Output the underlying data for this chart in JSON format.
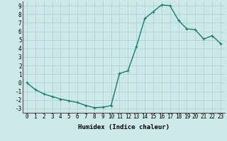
{
  "x": [
    0,
    1,
    2,
    3,
    4,
    5,
    6,
    7,
    8,
    9,
    10,
    11,
    12,
    13,
    14,
    15,
    16,
    17,
    18,
    19,
    20,
    21,
    22,
    23
  ],
  "y": [
    0.0,
    -0.8,
    -1.3,
    -1.6,
    -1.9,
    -2.1,
    -2.3,
    -2.65,
    -2.9,
    -2.85,
    -2.65,
    1.1,
    1.4,
    4.2,
    7.5,
    8.3,
    9.1,
    9.0,
    7.3,
    6.3,
    6.2,
    5.1,
    5.5,
    4.6
  ],
  "line_color": "#1a7a6e",
  "marker": "+",
  "marker_size": 3.5,
  "bg_color": "#cce8e8",
  "grid_color": "#aacece",
  "xlabel": "Humidex (Indice chaleur)",
  "xlim": [
    -0.5,
    23.5
  ],
  "ylim": [
    -3.5,
    9.5
  ],
  "xticks": [
    0,
    1,
    2,
    3,
    4,
    5,
    6,
    7,
    8,
    9,
    10,
    11,
    12,
    13,
    14,
    15,
    16,
    17,
    18,
    19,
    20,
    21,
    22,
    23
  ],
  "yticks": [
    -3,
    -2,
    -1,
    0,
    1,
    2,
    3,
    4,
    5,
    6,
    7,
    8,
    9
  ],
  "xlabel_fontsize": 6.5,
  "tick_fontsize": 5.5,
  "line_width": 1.0,
  "marker_color": "#1a7a6e"
}
